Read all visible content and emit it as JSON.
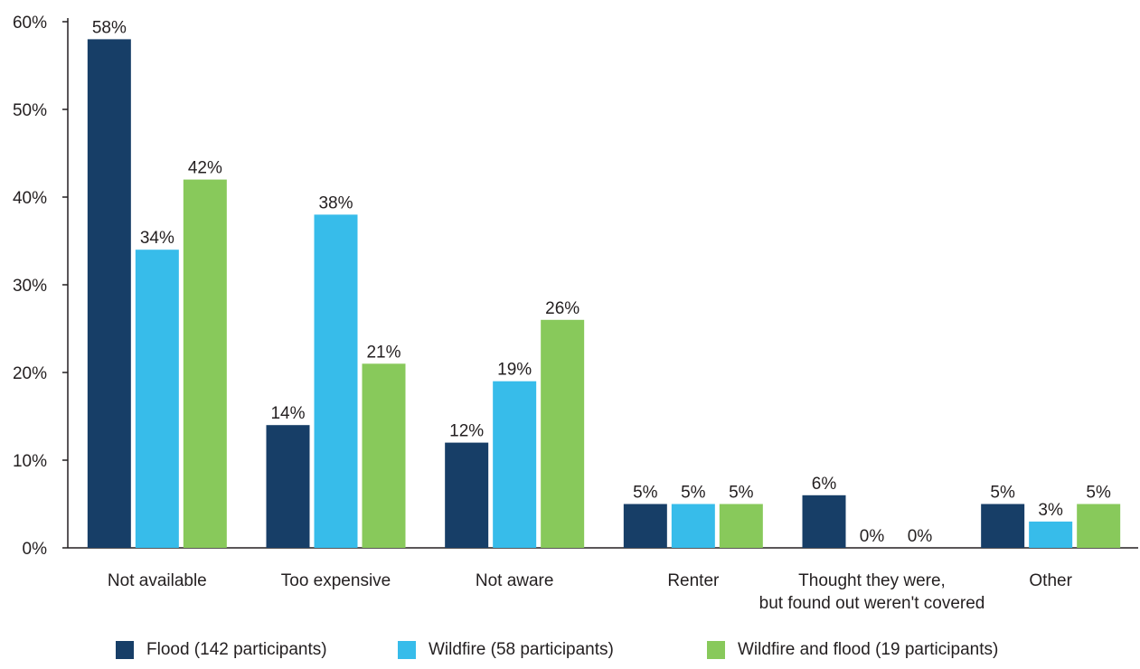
{
  "chart_data": {
    "type": "bar",
    "categories": [
      [
        "Not available"
      ],
      [
        "Too expensive"
      ],
      [
        "Not aware"
      ],
      [
        "Renter"
      ],
      [
        "Thought they were,",
        "but found out weren't covered"
      ],
      [
        "Other"
      ]
    ],
    "series": [
      {
        "name": "Flood (142 participants)",
        "color": "#173e67",
        "values": [
          58,
          14,
          12,
          5,
          6,
          5
        ]
      },
      {
        "name": "Wildfire (58 participants)",
        "color": "#37bcea",
        "values": [
          34,
          38,
          19,
          5,
          0,
          3
        ]
      },
      {
        "name": "Wildfire and flood (19 participants)",
        "color": "#88c95b",
        "values": [
          42,
          21,
          26,
          5,
          0,
          5
        ]
      }
    ],
    "y_ticks": [
      "0%",
      "10%",
      "20%",
      "30%",
      "40%",
      "50%",
      "60%"
    ],
    "ylim": [
      0,
      60
    ],
    "value_suffix": "%",
    "legend_position": "bottom",
    "grid": false
  }
}
